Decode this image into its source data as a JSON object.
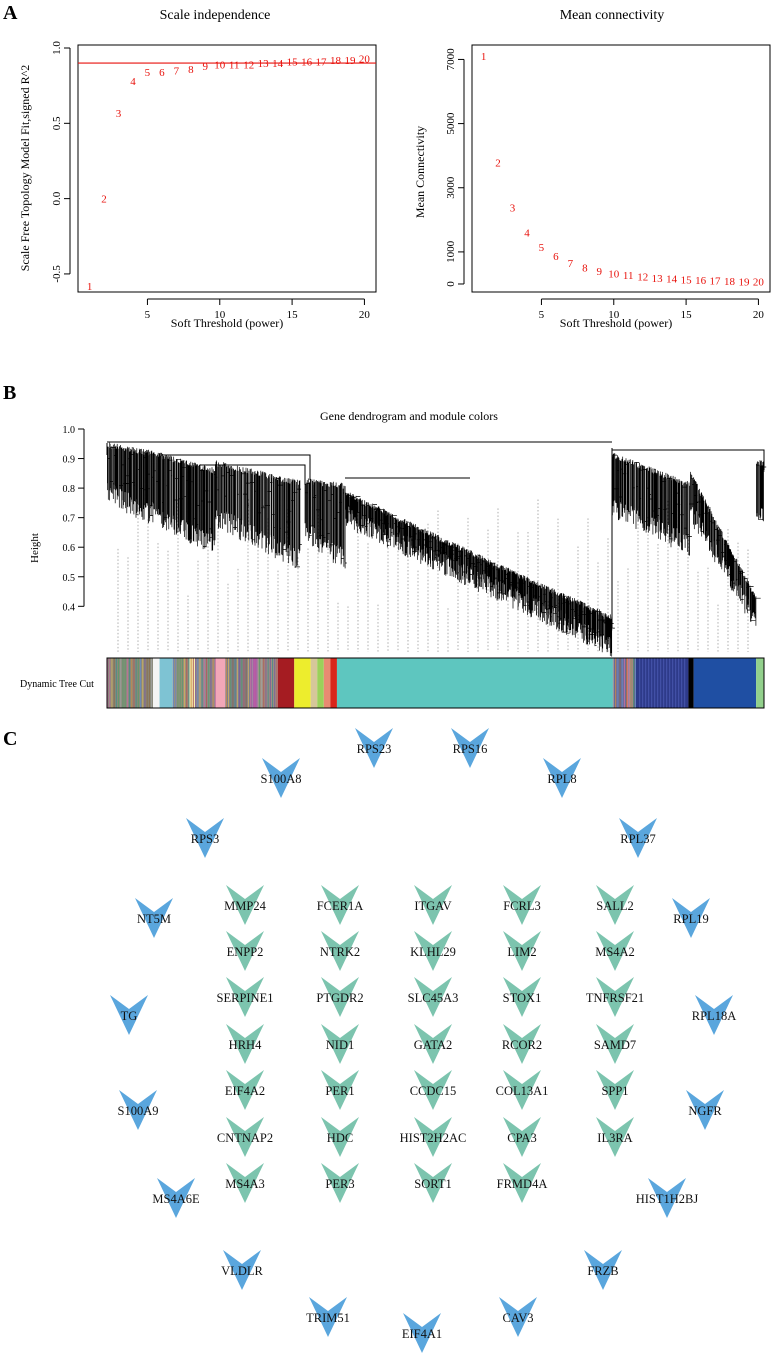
{
  "panel_labels": {
    "a": "A",
    "b": "B",
    "c": "C"
  },
  "chart_data": [
    {
      "type": "scatter",
      "title": "Scale independence",
      "xlabel": "Soft Threshold (power)",
      "ylabel": "Scale Free Topology Model Fit,signed R^2",
      "xlim": [
        0.2,
        20.8
      ],
      "ylim": [
        -0.62,
        1.02
      ],
      "xticks": [
        5,
        10,
        15,
        20
      ],
      "yticks": [
        -0.5,
        0.0,
        0.5,
        1.0
      ],
      "ytick_labels": [
        "-0.5",
        "0.0",
        "0.5",
        "1.0"
      ],
      "hline": 0.9,
      "point_color": "#e8120c",
      "points": [
        {
          "x": 1,
          "y": -0.58,
          "label": "1"
        },
        {
          "x": 2,
          "y": 0.0,
          "label": "2"
        },
        {
          "x": 3,
          "y": 0.57,
          "label": "3"
        },
        {
          "x": 4,
          "y": 0.78,
          "label": "4"
        },
        {
          "x": 5,
          "y": 0.84,
          "label": "5"
        },
        {
          "x": 6,
          "y": 0.84,
          "label": "6"
        },
        {
          "x": 7,
          "y": 0.85,
          "label": "7"
        },
        {
          "x": 8,
          "y": 0.86,
          "label": "8"
        },
        {
          "x": 9,
          "y": 0.88,
          "label": "9"
        },
        {
          "x": 10,
          "y": 0.89,
          "label": "10"
        },
        {
          "x": 11,
          "y": 0.89,
          "label": "11"
        },
        {
          "x": 12,
          "y": 0.89,
          "label": "12"
        },
        {
          "x": 13,
          "y": 0.9,
          "label": "13"
        },
        {
          "x": 14,
          "y": 0.9,
          "label": "14"
        },
        {
          "x": 15,
          "y": 0.91,
          "label": "15"
        },
        {
          "x": 16,
          "y": 0.91,
          "label": "16"
        },
        {
          "x": 17,
          "y": 0.91,
          "label": "17"
        },
        {
          "x": 18,
          "y": 0.92,
          "label": "18"
        },
        {
          "x": 19,
          "y": 0.92,
          "label": "19"
        },
        {
          "x": 20,
          "y": 0.93,
          "label": "20"
        }
      ]
    },
    {
      "type": "scatter",
      "title": "Mean connectivity",
      "xlabel": "Soft Threshold (power)",
      "ylabel": "Mean Connectivity",
      "xlim": [
        0.2,
        20.8
      ],
      "ylim": [
        -250,
        7450
      ],
      "xticks": [
        5,
        10,
        15,
        20
      ],
      "yticks": [
        0,
        1000,
        3000,
        5000,
        7000
      ],
      "ytick_labels": [
        "0",
        "1000",
        "3000",
        "5000",
        "7000"
      ],
      "point_color": "#e8120c",
      "points": [
        {
          "x": 1,
          "y": 7110,
          "label": "1"
        },
        {
          "x": 2,
          "y": 3780,
          "label": "2"
        },
        {
          "x": 3,
          "y": 2380,
          "label": "3"
        },
        {
          "x": 4,
          "y": 1600,
          "label": "4"
        },
        {
          "x": 5,
          "y": 1150,
          "label": "5"
        },
        {
          "x": 6,
          "y": 870,
          "label": "6"
        },
        {
          "x": 7,
          "y": 660,
          "label": "7"
        },
        {
          "x": 8,
          "y": 520,
          "label": "8"
        },
        {
          "x": 9,
          "y": 410,
          "label": "9"
        },
        {
          "x": 10,
          "y": 330,
          "label": "10"
        },
        {
          "x": 11,
          "y": 280,
          "label": "11"
        },
        {
          "x": 12,
          "y": 230,
          "label": "12"
        },
        {
          "x": 13,
          "y": 190,
          "label": "13"
        },
        {
          "x": 14,
          "y": 165,
          "label": "14"
        },
        {
          "x": 15,
          "y": 140,
          "label": "15"
        },
        {
          "x": 16,
          "y": 120,
          "label": "16"
        },
        {
          "x": 17,
          "y": 105,
          "label": "17"
        },
        {
          "x": 18,
          "y": 95,
          "label": "18"
        },
        {
          "x": 19,
          "y": 85,
          "label": "19"
        },
        {
          "x": 20,
          "y": 75,
          "label": "20"
        }
      ]
    },
    {
      "type": "dendrogram",
      "title": "Gene dendrogram and module colors",
      "ylabel": "Height",
      "ylim": [
        0.33,
        1.0
      ],
      "yticks": [
        0.4,
        0.5,
        0.6,
        0.7,
        0.8,
        0.9,
        1.0
      ],
      "ytick_labels": [
        "0.4",
        "0.5",
        "0.6",
        "0.7",
        "0.8",
        "0.9",
        "1.0"
      ],
      "color_bar_label": "Dynamic Tree Cut",
      "modules": [
        {
          "name": "mixed-small",
          "color": "#8a8a7a",
          "start": 0.0,
          "end": 0.07
        },
        {
          "name": "white",
          "color": "#f4f4f4",
          "start": 0.07,
          "end": 0.08
        },
        {
          "name": "lightcyan",
          "color": "#7ec3d3",
          "start": 0.08,
          "end": 0.1
        },
        {
          "name": "mixed-2",
          "color": "#9a8f7c",
          "start": 0.1,
          "end": 0.125
        },
        {
          "name": "lightyellow",
          "color": "#f5f0b0",
          "start": 0.125,
          "end": 0.135
        },
        {
          "name": "mixed-3",
          "color": "#8f8d8a",
          "start": 0.135,
          "end": 0.165
        },
        {
          "name": "pink",
          "color": "#f2a7b8",
          "start": 0.165,
          "end": 0.18
        },
        {
          "name": "mixed-4",
          "color": "#7e7e8e",
          "start": 0.18,
          "end": 0.22
        },
        {
          "name": "magenta",
          "color": "#b04aa8",
          "start": 0.22,
          "end": 0.23
        },
        {
          "name": "mixed-5",
          "color": "#a09080",
          "start": 0.23,
          "end": 0.26
        },
        {
          "name": "brown",
          "color": "#a51c22",
          "start": 0.26,
          "end": 0.285
        },
        {
          "name": "yellow",
          "color": "#eded2d",
          "start": 0.285,
          "end": 0.31
        },
        {
          "name": "tan",
          "color": "#d6c79a",
          "start": 0.31,
          "end": 0.32
        },
        {
          "name": "greenyellow",
          "color": "#9bd05a",
          "start": 0.32,
          "end": 0.33
        },
        {
          "name": "salmon",
          "color": "#e88a72",
          "start": 0.33,
          "end": 0.34
        },
        {
          "name": "red",
          "color": "#d8261b",
          "start": 0.34,
          "end": 0.35
        },
        {
          "name": "turquoise",
          "color": "#5ec6bf",
          "start": 0.35,
          "end": 0.77
        },
        {
          "name": "mixed-6",
          "color": "#6a6a9a",
          "start": 0.77,
          "end": 0.79
        },
        {
          "name": "salmon2",
          "color": "#e27a7a",
          "start": 0.79,
          "end": 0.8
        },
        {
          "name": "mixed-7",
          "color": "#5a6a8a",
          "start": 0.8,
          "end": 0.805
        },
        {
          "name": "midnightblue",
          "color": "#2e3a8a",
          "start": 0.805,
          "end": 0.885
        },
        {
          "name": "black",
          "color": "#000000",
          "start": 0.885,
          "end": 0.893
        },
        {
          "name": "blue",
          "color": "#1f4fa3",
          "start": 0.893,
          "end": 0.988
        },
        {
          "name": "lightgreen",
          "color": "#92d08c",
          "start": 0.988,
          "end": 1.0
        }
      ],
      "merge_heights": [
        0.955,
        0.95,
        0.875,
        0.86,
        0.84
      ]
    }
  ],
  "network": {
    "outer_color": "#5aa6dd",
    "inner_color": "#7cc4ae",
    "outer_nodes": [
      "RPS23",
      "RPS16",
      "S100A8",
      "RPL8",
      "RPS3",
      "RPL37",
      "NT5M",
      "RPL19",
      "TG",
      "RPL18A",
      "S100A9",
      "NGFR",
      "MS4A6E",
      "HIST1H2BJ",
      "VLDLR",
      "FRZB",
      "TRIM51",
      "CAV3",
      "EIF4A1"
    ],
    "inner_nodes": [
      "MMP24",
      "FCER1A",
      "ITGAV",
      "FCRL3",
      "SALL2",
      "ENPP2",
      "NTRK2",
      "KLHL29",
      "LIM2",
      "MS4A2",
      "SERPINE1",
      "PTGDR2",
      "SLC45A3",
      "STOX1",
      "TNFRSF21",
      "HRH4",
      "NID1",
      "GATA2",
      "RCOR2",
      "SAMD7",
      "EIF4A2",
      "PER1",
      "CCDC15",
      "COL13A1",
      "SPP1",
      "CNTNAP2",
      "HDC",
      "HIST2H2AC",
      "CPA3",
      "IL3RA",
      "MS4A3",
      "PER3",
      "SORT1",
      "FRMD4A"
    ]
  }
}
